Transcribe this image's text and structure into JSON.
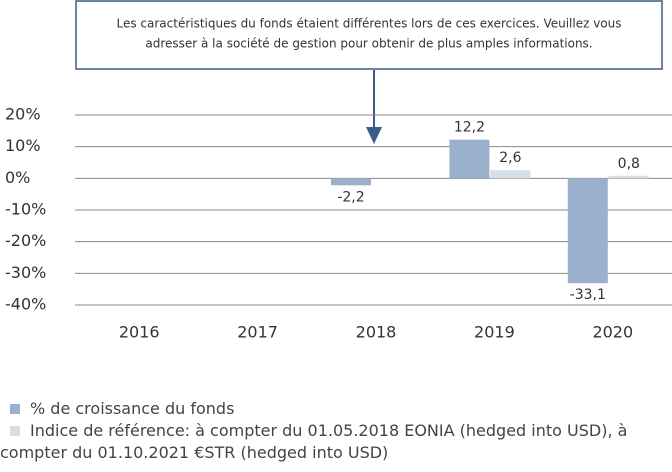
{
  "chart_data": {
    "type": "bar",
    "annotation": [
      "Les caractéristiques du fonds étaient différentes lors de ces exercices. Veuillez vous",
      "adresser à la société de gestion pour obtenir de plus amples informations."
    ],
    "categories": [
      "2016",
      "2017",
      "2018",
      "2019",
      "2020"
    ],
    "series": [
      {
        "name": "% de croissance du fonds",
        "color": "#9bb0cc",
        "values": [
          null,
          null,
          -2.2,
          12.2,
          -33.1
        ],
        "value_labels": [
          null,
          null,
          "-2,2",
          "12,2",
          "-33,1"
        ]
      },
      {
        "name": "Indice de référence: à compter du 01.05.2018 EONIA (hedged into USD), à compter du 01.10.2021 €STR (hedged into USD)",
        "color": "#d5dfe9",
        "values": [
          null,
          null,
          null,
          2.6,
          0.8
        ],
        "value_labels": [
          null,
          null,
          null,
          "2,6",
          "0,8"
        ]
      }
    ],
    "ylim": [
      -40,
      20
    ],
    "yticks": [
      {
        "value": 20,
        "label": "20%"
      },
      {
        "value": 10,
        "label": "10%"
      },
      {
        "value": 0,
        "label": "0%"
      },
      {
        "value": -10,
        "label": "-10%"
      },
      {
        "value": -20,
        "label": "-20%"
      },
      {
        "value": -30,
        "label": "-30%"
      },
      {
        "value": -40,
        "label": "-40%"
      }
    ],
    "grid": true
  }
}
